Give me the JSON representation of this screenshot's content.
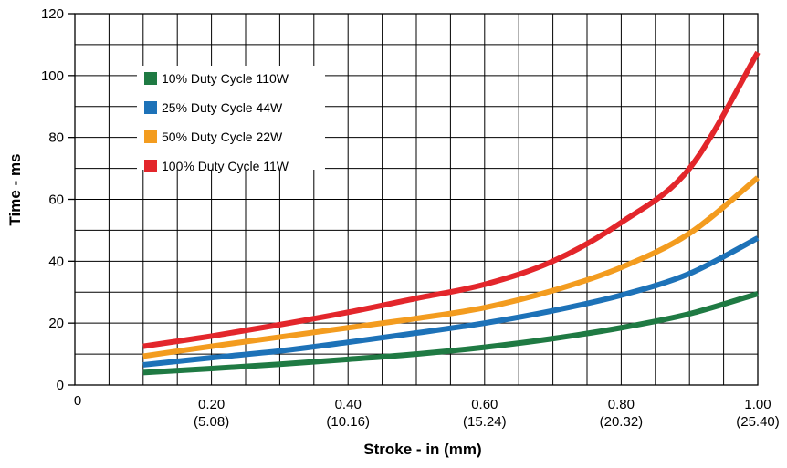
{
  "chart_data": {
    "type": "line",
    "xlabel": "Stroke - in (mm)",
    "ylabel": "Time - ms",
    "xlim": [
      0,
      1.0
    ],
    "ylim": [
      0,
      120
    ],
    "grid": true,
    "legend_position": "top-left",
    "x_ticks": [
      {
        "value": 0,
        "label": "0",
        "sub": ""
      },
      {
        "value": 0.2,
        "label": "0.20",
        "sub": "(5.08)"
      },
      {
        "value": 0.4,
        "label": "0.40",
        "sub": "(10.16)"
      },
      {
        "value": 0.6,
        "label": "0.60",
        "sub": "(15.24)"
      },
      {
        "value": 0.8,
        "label": "0.80",
        "sub": "(20.32)"
      },
      {
        "value": 1.0,
        "label": "1.00",
        "sub": "(25.40)"
      }
    ],
    "y_ticks": [
      {
        "value": 0,
        "label": "0"
      },
      {
        "value": 20,
        "label": "20"
      },
      {
        "value": 40,
        "label": "40"
      },
      {
        "value": 60,
        "label": "60"
      },
      {
        "value": 80,
        "label": "80"
      },
      {
        "value": 100,
        "label": "100"
      },
      {
        "value": 120,
        "label": "120"
      }
    ],
    "series": [
      {
        "name": "10% Duty Cycle 110W",
        "color": "#1f7a43",
        "x": [
          0.1,
          0.2,
          0.3,
          0.4,
          0.5,
          0.6,
          0.7,
          0.8,
          0.9,
          1.0
        ],
        "y": [
          4,
          5.3,
          6.7,
          8.3,
          10,
          12.2,
          15,
          18.5,
          23,
          29.5
        ]
      },
      {
        "name": "25% Duty Cycle 44W",
        "color": "#1d72b8",
        "x": [
          0.1,
          0.2,
          0.3,
          0.4,
          0.5,
          0.6,
          0.7,
          0.8,
          0.9,
          1.0
        ],
        "y": [
          6.5,
          8.8,
          11,
          13.8,
          16.8,
          20,
          24,
          29,
          36,
          47.5
        ]
      },
      {
        "name": "50% Duty Cycle 22W",
        "color": "#f39c1f",
        "x": [
          0.1,
          0.2,
          0.3,
          0.4,
          0.5,
          0.6,
          0.7,
          0.8,
          0.9,
          1.0
        ],
        "y": [
          9.3,
          12.5,
          15.5,
          18.5,
          21.5,
          25,
          30.5,
          38,
          49,
          67
        ]
      },
      {
        "name": "100% Duty Cycle 11W",
        "color": "#e3262b",
        "x": [
          0.1,
          0.2,
          0.3,
          0.4,
          0.5,
          0.6,
          0.7,
          0.8,
          0.9,
          1.0
        ],
        "y": [
          12.5,
          15.8,
          19.5,
          23.5,
          28,
          32.5,
          40,
          52.5,
          70,
          107.5
        ]
      }
    ]
  }
}
